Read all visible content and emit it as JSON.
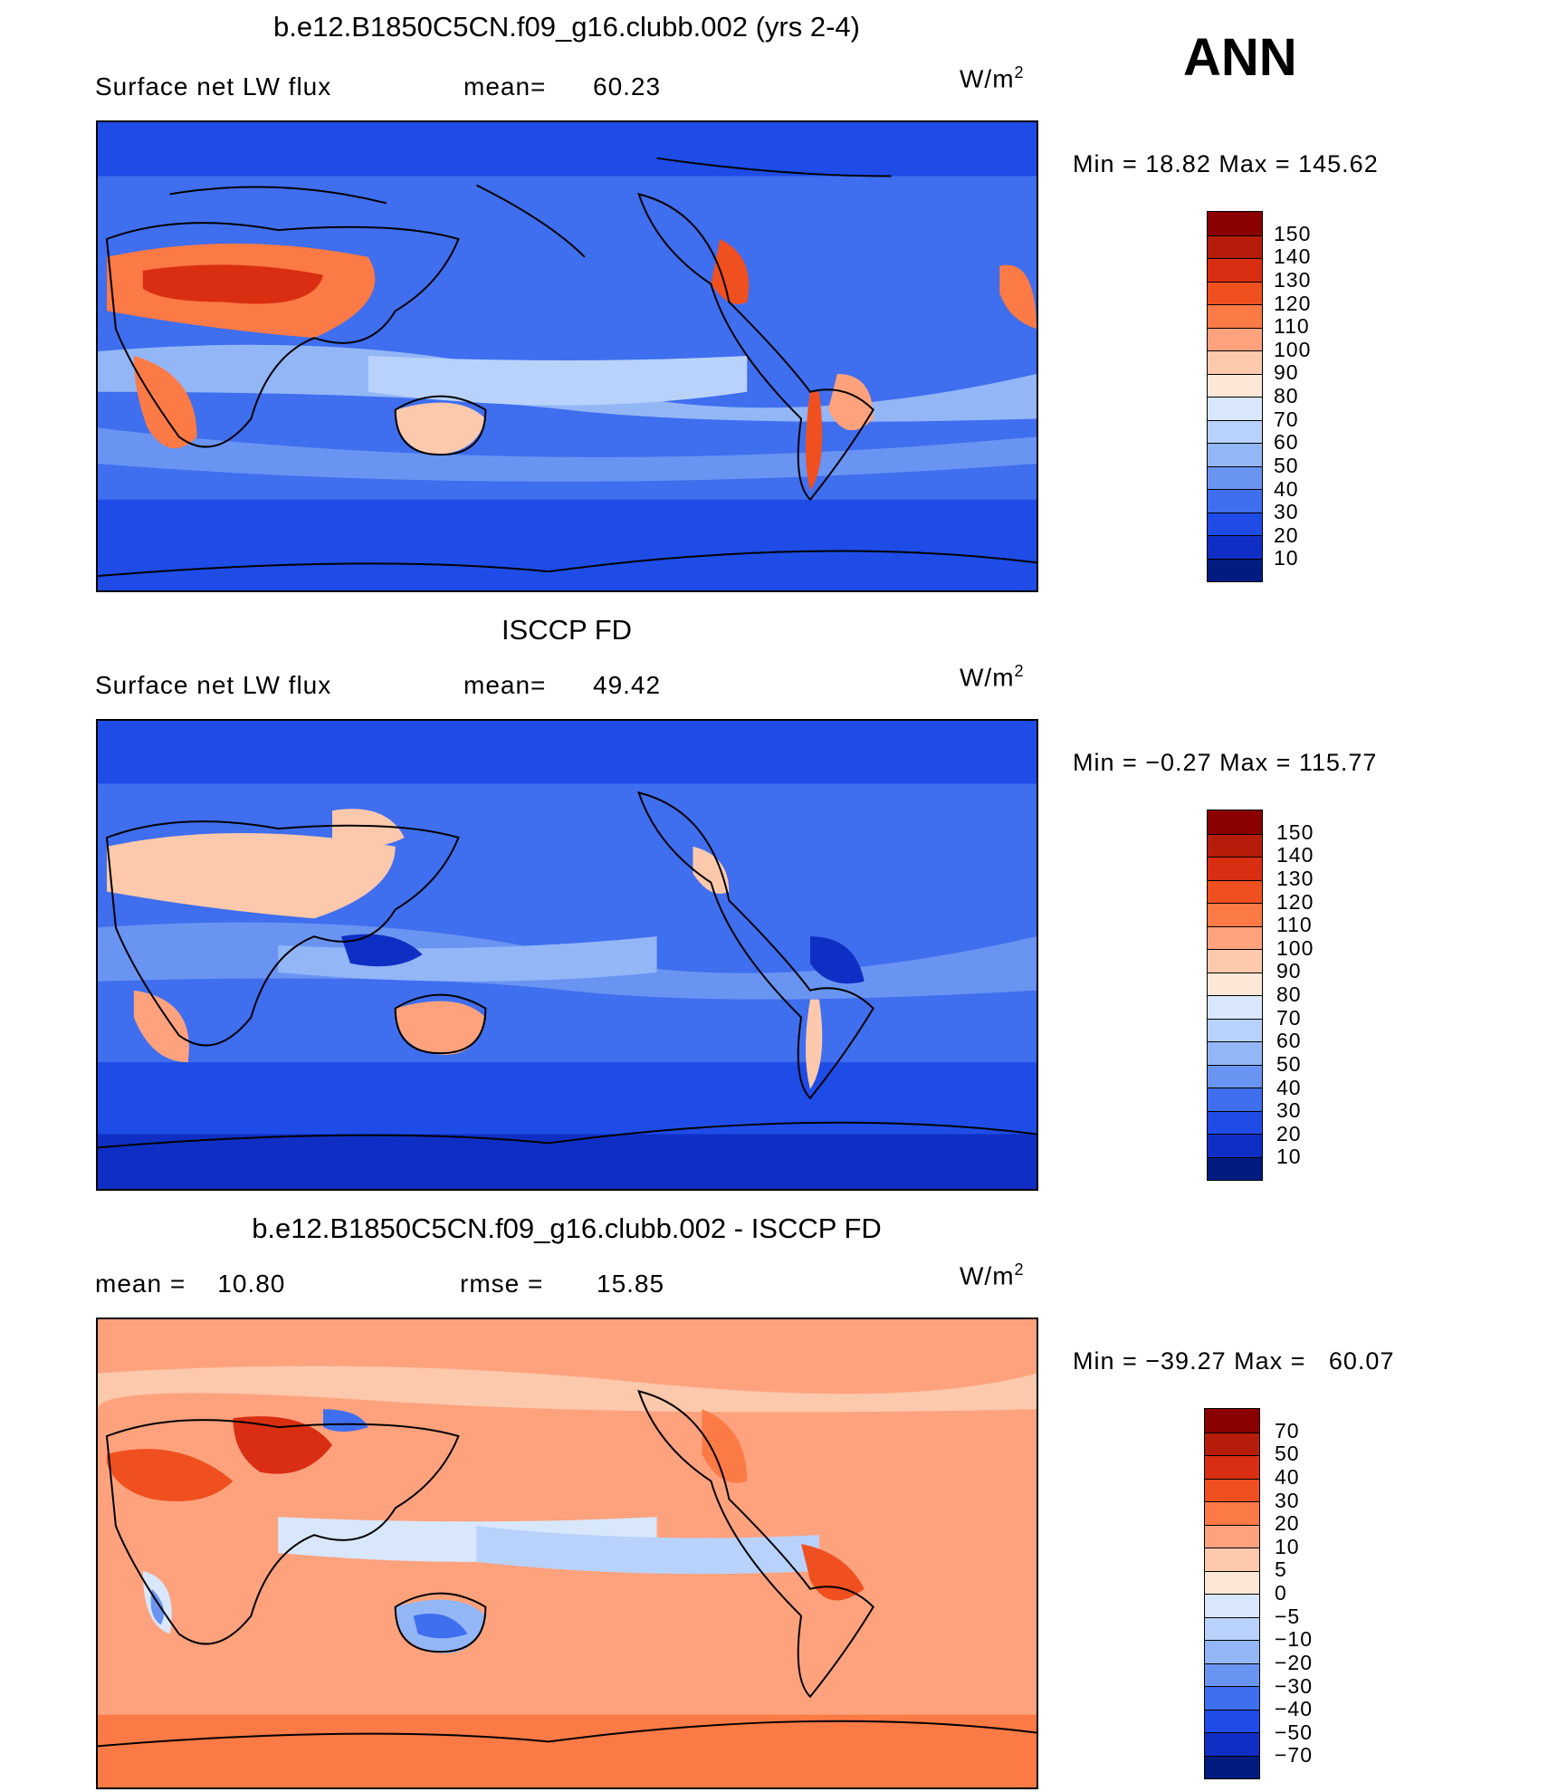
{
  "header": {
    "season": "ANN"
  },
  "panels": [
    {
      "title": "b.e12.B1850C5CN.f09_g16.clubb.002 (yrs 2-4)",
      "left_label": "Surface net LW flux",
      "mid_label": "mean=",
      "mid_value": "60.23",
      "units": "W/m",
      "units_exp": "2",
      "minmax": "Min =   18.82 Max = 145.62",
      "colorbar": {
        "labels": [
          "150",
          "140",
          "130",
          "120",
          "110",
          "100",
          "90",
          "80",
          "70",
          "60",
          "50",
          "40",
          "30",
          "20",
          "10"
        ],
        "colors": [
          "#8b0000",
          "#b51c0a",
          "#d92e12",
          "#f0501f",
          "#fb7a45",
          "#fea27e",
          "#fdc9ad",
          "#fde8d8",
          "#d8e7fb",
          "#b8d2fb",
          "#93b6f7",
          "#6a94f2",
          "#3f6eee",
          "#1f4ce6",
          "#0f2fc4",
          "#001c80"
        ]
      }
    },
    {
      "title": "ISCCP FD",
      "left_label": "Surface net LW flux",
      "mid_label": "mean=",
      "mid_value": "49.42",
      "units": "W/m",
      "units_exp": "2",
      "minmax": "Min =  −0.27 Max = 115.77",
      "colorbar": {
        "labels": [
          "150",
          "140",
          "130",
          "120",
          "110",
          "100",
          "90",
          "80",
          "70",
          "60",
          "50",
          "40",
          "30",
          "20",
          "10"
        ],
        "colors": [
          "#8b0000",
          "#b51c0a",
          "#d92e12",
          "#f0501f",
          "#fb7a45",
          "#fea27e",
          "#fdc9ad",
          "#fde8d8",
          "#d8e7fb",
          "#b8d2fb",
          "#93b6f7",
          "#6a94f2",
          "#3f6eee",
          "#1f4ce6",
          "#0f2fc4",
          "#001c80"
        ]
      }
    },
    {
      "title": "b.e12.B1850C5CN.f09_g16.clubb.002 - ISCCP FD",
      "left_label": "mean =    10.80",
      "mid_label": "rmse =",
      "mid_value": "15.85",
      "units": "W/m",
      "units_exp": "2",
      "minmax": "Min = −39.27 Max =   60.07",
      "colorbar": {
        "labels": [
          "70",
          "50",
          "40",
          "30",
          "20",
          "10",
          "5",
          "0",
          "−5",
          "−10",
          "−20",
          "−30",
          "−40",
          "−50",
          "−70"
        ],
        "colors": [
          "#8b0000",
          "#b51c0a",
          "#d92e12",
          "#f0501f",
          "#fb7a45",
          "#fea27e",
          "#fdc9ad",
          "#fde8d8",
          "#d8e7fb",
          "#b8d2fb",
          "#93b6f7",
          "#6a94f2",
          "#3f6eee",
          "#1f4ce6",
          "#0f2fc4",
          "#001c80"
        ]
      }
    }
  ],
  "chart_data": [
    {
      "type": "heatmap",
      "title": "b.e12.B1850C5CN.f09_g16.clubb.002 (yrs 2-4)",
      "variable": "Surface net LW flux",
      "units": "W/m2",
      "mean": 60.23,
      "min": 18.82,
      "max": 145.62,
      "contour_levels": [
        10,
        20,
        30,
        40,
        50,
        60,
        70,
        80,
        90,
        100,
        110,
        120,
        130,
        140,
        150
      ],
      "colormap": "blue-white-red"
    },
    {
      "type": "heatmap",
      "title": "ISCCP FD",
      "variable": "Surface net LW flux",
      "units": "W/m2",
      "mean": 49.42,
      "min": -0.27,
      "max": 115.77,
      "contour_levels": [
        10,
        20,
        30,
        40,
        50,
        60,
        70,
        80,
        90,
        100,
        110,
        120,
        130,
        140,
        150
      ],
      "colormap": "blue-white-red"
    },
    {
      "type": "heatmap",
      "title": "b.e12.B1850C5CN.f09_g16.clubb.002 - ISCCP FD",
      "units": "W/m2",
      "mean": 10.8,
      "rmse": 15.85,
      "min": -39.27,
      "max": 60.07,
      "contour_levels": [
        -70,
        -50,
        -40,
        -30,
        -20,
        -10,
        -5,
        0,
        5,
        10,
        20,
        30,
        40,
        50,
        70
      ],
      "colormap": "blue-white-red"
    }
  ]
}
